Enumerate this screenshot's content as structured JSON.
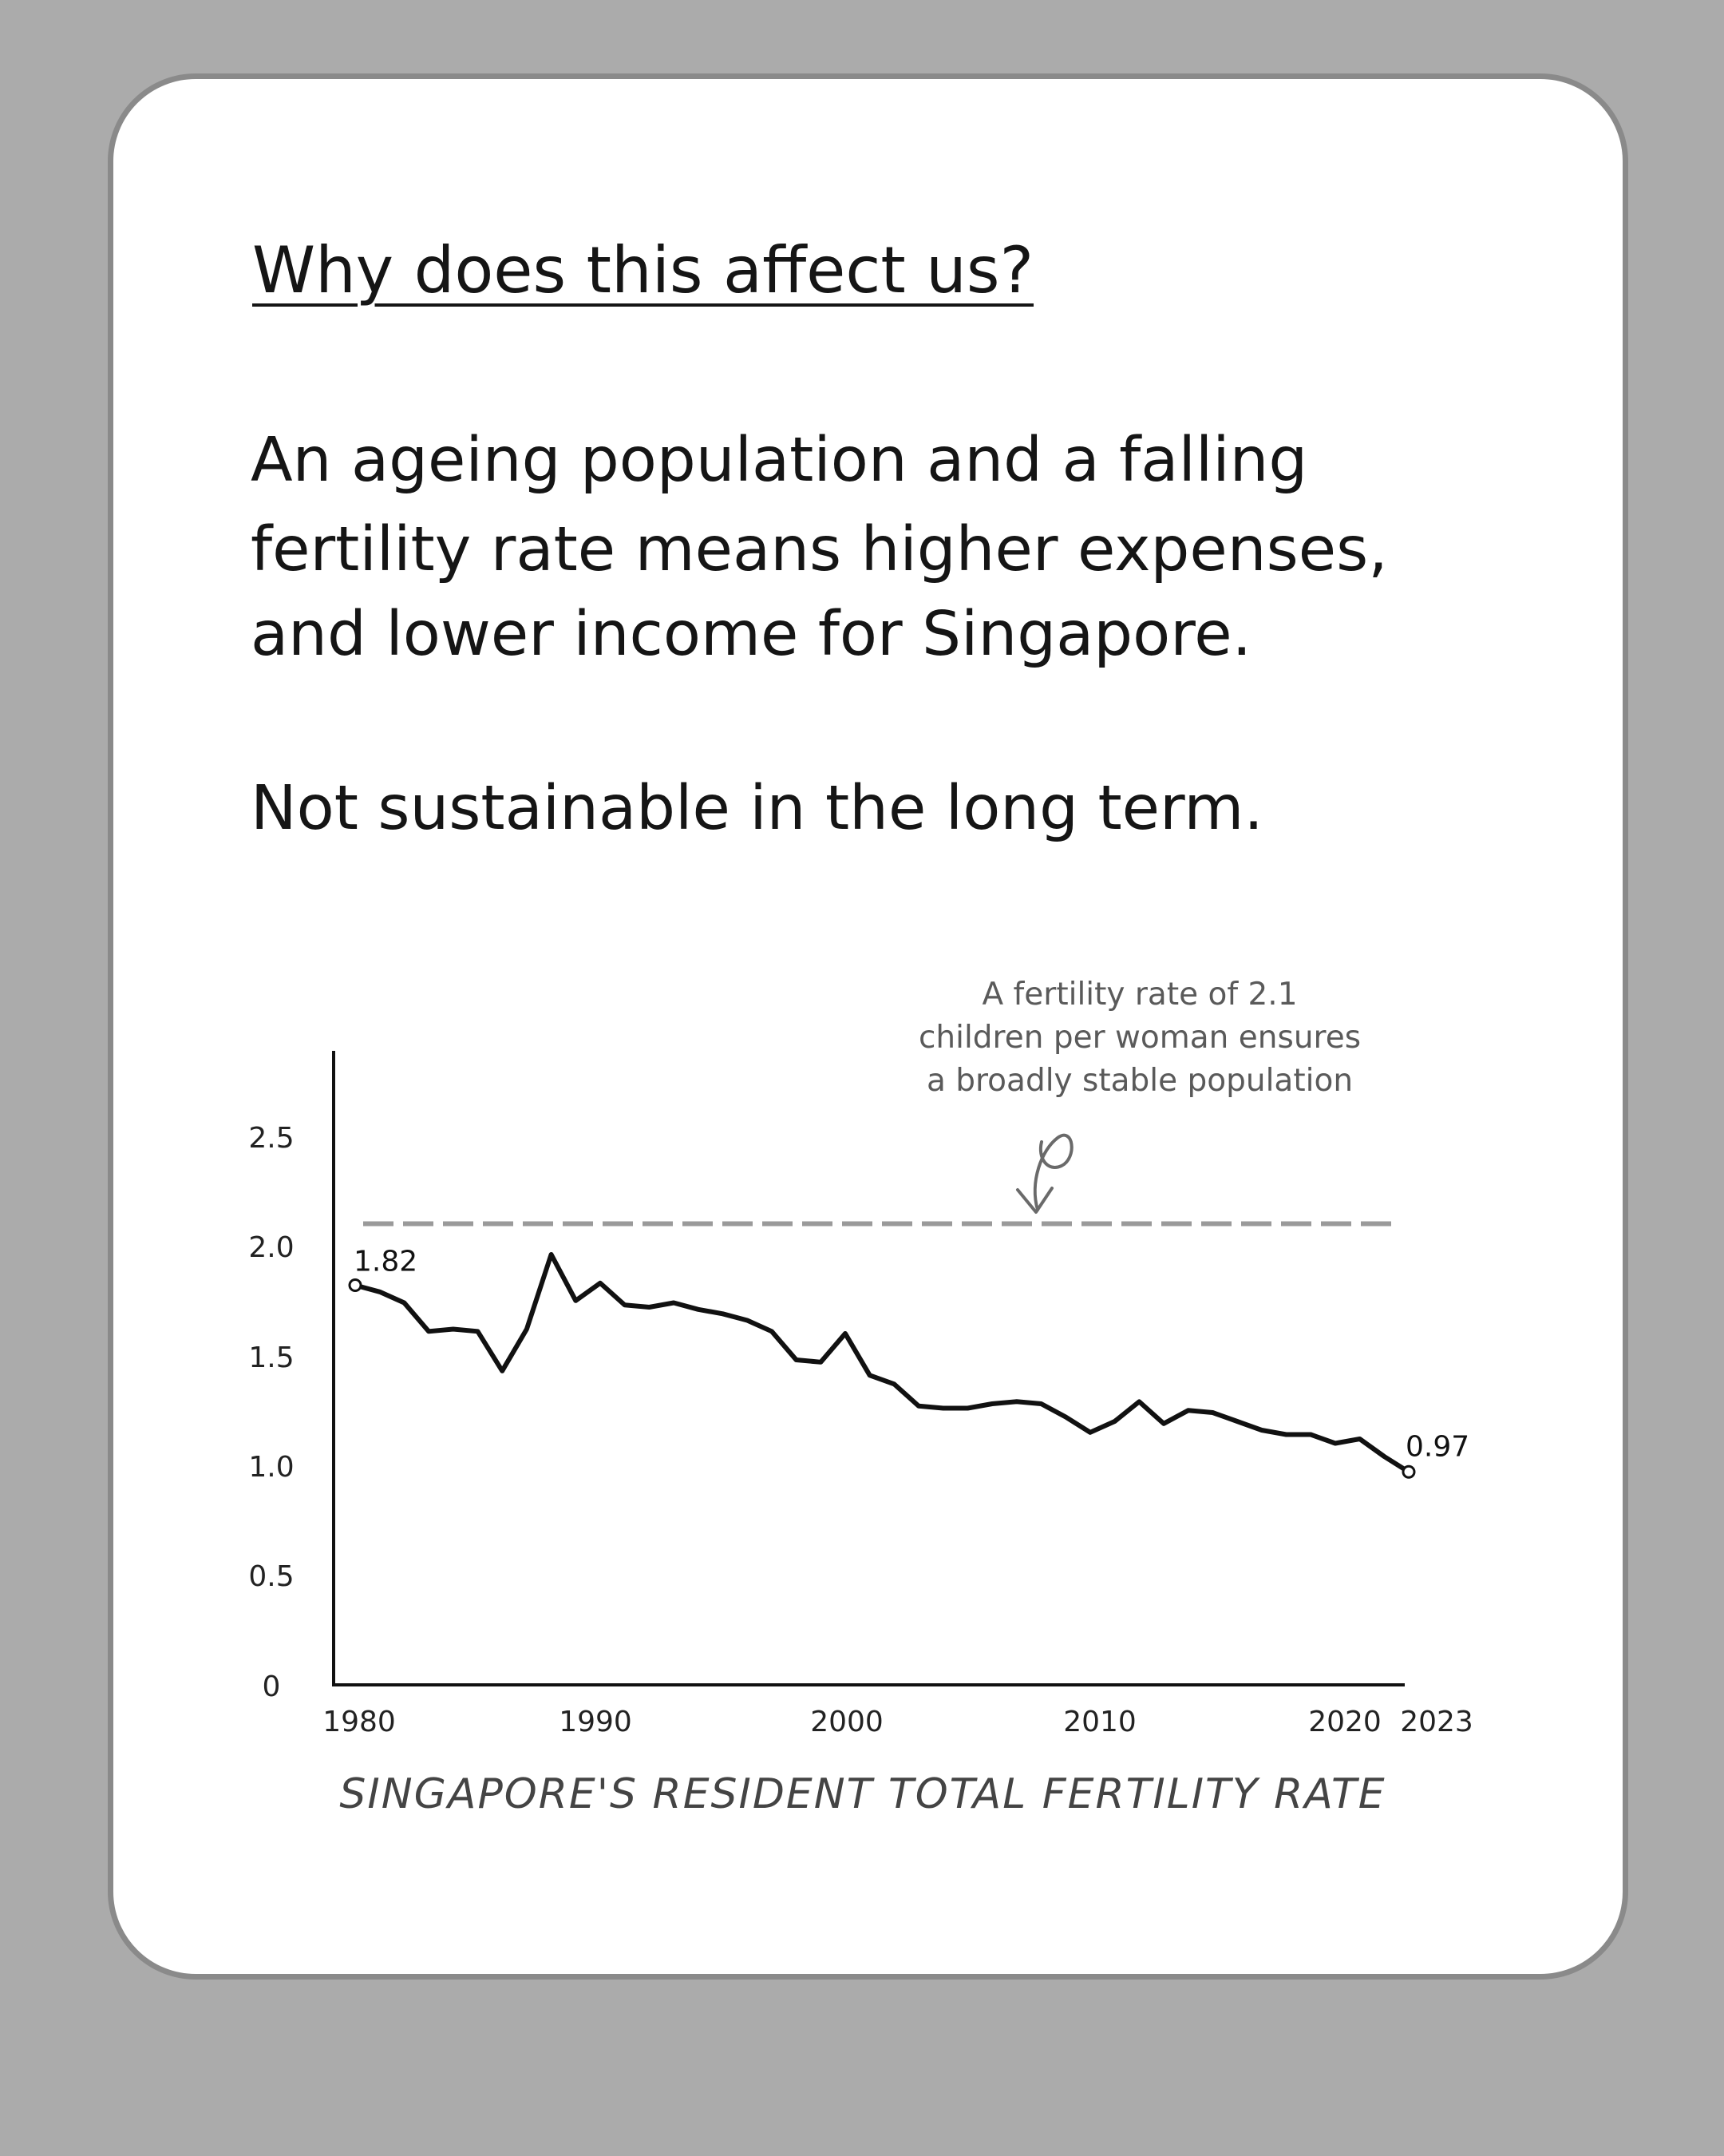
{
  "heading": "Why does this affect us?",
  "body": {
    "lines": [
      "An ageing population and a falling",
      "fertility rate means higher expenses,",
      "and lower income for Singapore."
    ],
    "conclusion": "Not sustainable in the long term."
  },
  "colors": {
    "background": "#ababab",
    "card": "#ffffff",
    "line": "#111111",
    "reference_line": "#9a9a9a"
  },
  "chart_data": {
    "type": "line",
    "title": "SINGAPORE'S RESIDENT TOTAL FERTILITY RATE",
    "xlabel": "",
    "ylabel": "",
    "xlim": [
      1980,
      2023
    ],
    "ylim": [
      0,
      2.9
    ],
    "x_ticks": [
      "1980",
      "1990",
      "2000",
      "2010",
      "2020",
      "2023"
    ],
    "y_ticks": [
      "0",
      "0.5",
      "1.0",
      "1.5",
      "2.0",
      "2.5"
    ],
    "grid": false,
    "reference_line": {
      "value": 2.1,
      "style": "dashed",
      "annotation": [
        "A fertility rate of 2.1",
        "children per woman ensures",
        "a broadly stable population"
      ]
    },
    "series": [
      {
        "x": [
          1980,
          1981,
          1982,
          1983,
          1984,
          1985,
          1986,
          1987,
          1988,
          1989,
          1990,
          1991,
          1992,
          1993,
          1994,
          1995,
          1996,
          1997,
          1998,
          1999,
          2000,
          2001,
          2002,
          2003,
          2004,
          2005,
          2006,
          2007,
          2008,
          2009,
          2010,
          2011,
          2012,
          2013,
          2014,
          2015,
          2016,
          2017,
          2018,
          2019,
          2020,
          2021,
          2022,
          2023
        ],
        "values": [
          1.82,
          1.79,
          1.74,
          1.61,
          1.62,
          1.61,
          1.43,
          1.62,
          1.96,
          1.75,
          1.83,
          1.73,
          1.72,
          1.74,
          1.71,
          1.69,
          1.66,
          1.61,
          1.48,
          1.47,
          1.6,
          1.41,
          1.37,
          1.27,
          1.26,
          1.26,
          1.28,
          1.29,
          1.28,
          1.22,
          1.15,
          1.2,
          1.29,
          1.19,
          1.25,
          1.24,
          1.2,
          1.16,
          1.14,
          1.14,
          1.1,
          1.12,
          1.04,
          0.97
        ]
      }
    ],
    "data_labels": [
      {
        "x": 1980,
        "text": "1.82"
      },
      {
        "x": 2023,
        "text": "0.97"
      }
    ]
  }
}
